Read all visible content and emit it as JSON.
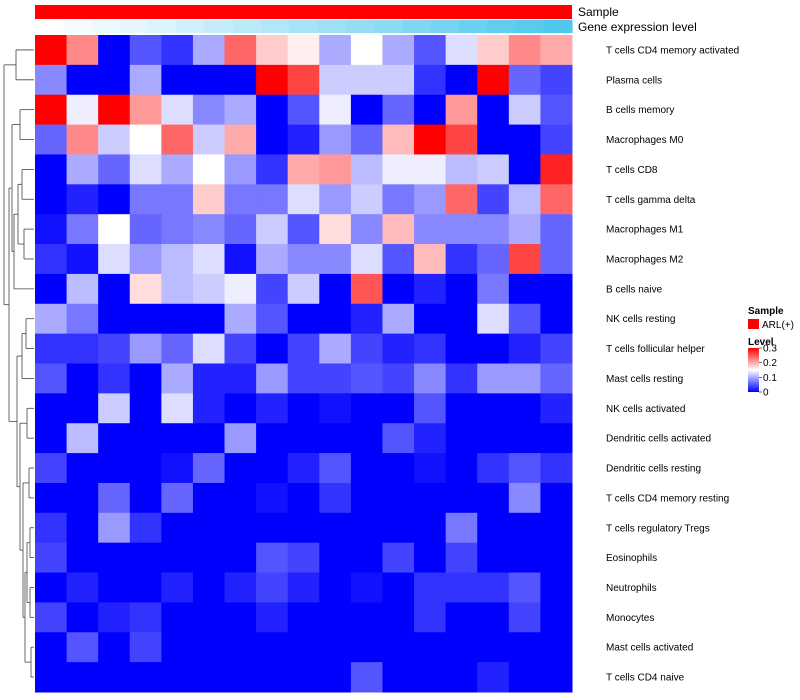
{
  "chart_data": {
    "type": "heatmap",
    "title": "",
    "annotation_rows": {
      "sample_label": "Sample",
      "gene_label": "Gene expression level"
    },
    "rows": [
      "T cells CD4 memory activated",
      "Plasma cells",
      "B cells memory",
      "Macrophages M0",
      "T cells CD8",
      "T cells gamma delta",
      "Macrophages M1",
      "Macrophages M2",
      "B cells naive",
      "NK cells resting",
      "T cells follicular helper",
      "Mast cells resting",
      "NK cells activated",
      "Dendritic cells activated",
      "Dendritic cells resting",
      "T cells CD4 memory resting",
      "T cells regulatory  Tregs",
      "Eosinophils",
      "Neutrophils",
      "Monocytes",
      "Mast cells activated",
      "T cells CD4 naive"
    ],
    "gene_expression_gradient": [
      0.0,
      0.05,
      0.1,
      0.15,
      0.2,
      0.27,
      0.33,
      0.38,
      0.44,
      0.5,
      0.55,
      0.61,
      0.66,
      0.72,
      0.78,
      0.84,
      0.9,
      0.95,
      1.0
    ],
    "values": [
      [
        0.3,
        0.22,
        0.0,
        0.05,
        0.03,
        0.1,
        0.24,
        0.18,
        0.16,
        0.1,
        0.15,
        0.1,
        0.05,
        0.13,
        0.18,
        0.22,
        0.2
      ],
      [
        0.08,
        0.0,
        0.0,
        0.1,
        0.0,
        0.0,
        0.0,
        0.3,
        0.26,
        0.12,
        0.12,
        0.12,
        0.03,
        0.0,
        0.3,
        0.06,
        0.04
      ],
      [
        0.3,
        0.14,
        0.3,
        0.21,
        0.13,
        0.08,
        0.1,
        0.0,
        0.05,
        0.14,
        0.0,
        0.06,
        0.0,
        0.21,
        0.0,
        0.12,
        0.05
      ],
      [
        0.06,
        0.22,
        0.12,
        0.15,
        0.24,
        0.12,
        0.2,
        0.0,
        0.02,
        0.09,
        0.06,
        0.19,
        0.3,
        0.26,
        0.0,
        0.0,
        0.04
      ],
      [
        0.0,
        0.1,
        0.06,
        0.13,
        0.1,
        0.15,
        0.09,
        0.03,
        0.2,
        0.21,
        0.11,
        0.14,
        0.14,
        0.11,
        0.12,
        0.0,
        0.28
      ],
      [
        0.0,
        0.02,
        0.0,
        0.07,
        0.07,
        0.18,
        0.07,
        0.07,
        0.13,
        0.09,
        0.12,
        0.07,
        0.09,
        0.24,
        0.04,
        0.11,
        0.24
      ],
      [
        0.01,
        0.07,
        0.15,
        0.06,
        0.07,
        0.08,
        0.06,
        0.12,
        0.05,
        0.17,
        0.08,
        0.19,
        0.08,
        0.08,
        0.08,
        0.1,
        0.06
      ],
      [
        0.03,
        0.01,
        0.13,
        0.09,
        0.11,
        0.13,
        0.01,
        0.1,
        0.08,
        0.08,
        0.13,
        0.05,
        0.19,
        0.03,
        0.06,
        0.26,
        0.06
      ],
      [
        0.0,
        0.11,
        0.0,
        0.17,
        0.11,
        0.12,
        0.14,
        0.04,
        0.12,
        0.0,
        0.25,
        0.0,
        0.02,
        0.0,
        0.07,
        0.0,
        0.0
      ],
      [
        0.1,
        0.07,
        0.0,
        0.0,
        0.0,
        0.0,
        0.1,
        0.05,
        0.0,
        0.0,
        0.02,
        0.1,
        0.0,
        0.0,
        0.13,
        0.05,
        0.0
      ],
      [
        0.03,
        0.03,
        0.04,
        0.09,
        0.06,
        0.13,
        0.04,
        0.0,
        0.04,
        0.1,
        0.04,
        0.02,
        0.03,
        0.0,
        0.0,
        0.02,
        0.04
      ],
      [
        0.05,
        0.0,
        0.03,
        0.0,
        0.1,
        0.02,
        0.02,
        0.09,
        0.04,
        0.04,
        0.05,
        0.04,
        0.08,
        0.03,
        0.09,
        0.09,
        0.06
      ],
      [
        0.0,
        0.0,
        0.12,
        0.0,
        0.13,
        0.02,
        0.0,
        0.02,
        0.0,
        0.01,
        0.0,
        0.0,
        0.05,
        0.0,
        0.0,
        0.0,
        0.02
      ],
      [
        0.0,
        0.11,
        0.0,
        0.0,
        0.0,
        0.0,
        0.09,
        0.0,
        0.0,
        0.0,
        0.0,
        0.05,
        0.02,
        0.0,
        0.0,
        0.0,
        0.0
      ],
      [
        0.04,
        0.0,
        0.0,
        0.0,
        0.01,
        0.06,
        0.0,
        0.0,
        0.02,
        0.05,
        0.0,
        0.0,
        0.01,
        0.0,
        0.03,
        0.05,
        0.03
      ],
      [
        0.0,
        0.0,
        0.06,
        0.0,
        0.06,
        0.0,
        0.0,
        0.01,
        0.0,
        0.03,
        0.0,
        0.0,
        0.0,
        0.0,
        0.0,
        0.08,
        0.0
      ],
      [
        0.03,
        0.0,
        0.09,
        0.03,
        0.0,
        0.0,
        0.0,
        0.0,
        0.0,
        0.0,
        0.0,
        0.0,
        0.0,
        0.07,
        0.0,
        0.0,
        0.0
      ],
      [
        0.04,
        0.0,
        0.0,
        0.0,
        0.0,
        0.0,
        0.0,
        0.05,
        0.04,
        0.0,
        0.0,
        0.04,
        0.0,
        0.04,
        0.0,
        0.0,
        0.0
      ],
      [
        0.0,
        0.02,
        0.0,
        0.0,
        0.02,
        0.0,
        0.02,
        0.04,
        0.02,
        0.0,
        0.01,
        0.0,
        0.03,
        0.03,
        0.03,
        0.05,
        0.0
      ],
      [
        0.04,
        0.0,
        0.02,
        0.03,
        0.0,
        0.0,
        0.0,
        0.02,
        0.0,
        0.0,
        0.0,
        0.0,
        0.03,
        0.0,
        0.0,
        0.04,
        0.0
      ],
      [
        0.0,
        0.05,
        0.0,
        0.04,
        0.0,
        0.0,
        0.0,
        0.0,
        0.0,
        0.0,
        0.0,
        0.0,
        0.0,
        0.0,
        0.0,
        0.0,
        0.0
      ],
      [
        0.0,
        0.0,
        0.0,
        0.0,
        0.0,
        0.0,
        0.0,
        0.0,
        0.0,
        0.0,
        0.05,
        0.0,
        0.0,
        0.0,
        0.02,
        0.0,
        0.0
      ]
    ],
    "legend": {
      "sample_title": "Sample",
      "sample_entry": "ARL(+)",
      "level_title": "Level",
      "ticks": [
        "0.3",
        "0.2",
        "0.1",
        "0"
      ],
      "tick_values": [
        0.3,
        0.2,
        0.1,
        0.0
      ],
      "range": [
        0,
        0.3
      ]
    }
  },
  "colors": {
    "low": "#0000ff",
    "mid": "#ffffff",
    "high": "#ff0000",
    "sample_bar": "#ff0000",
    "gene_low": "#ffffff",
    "gene_high": "#4fc8ee",
    "dendro": "#444444"
  }
}
